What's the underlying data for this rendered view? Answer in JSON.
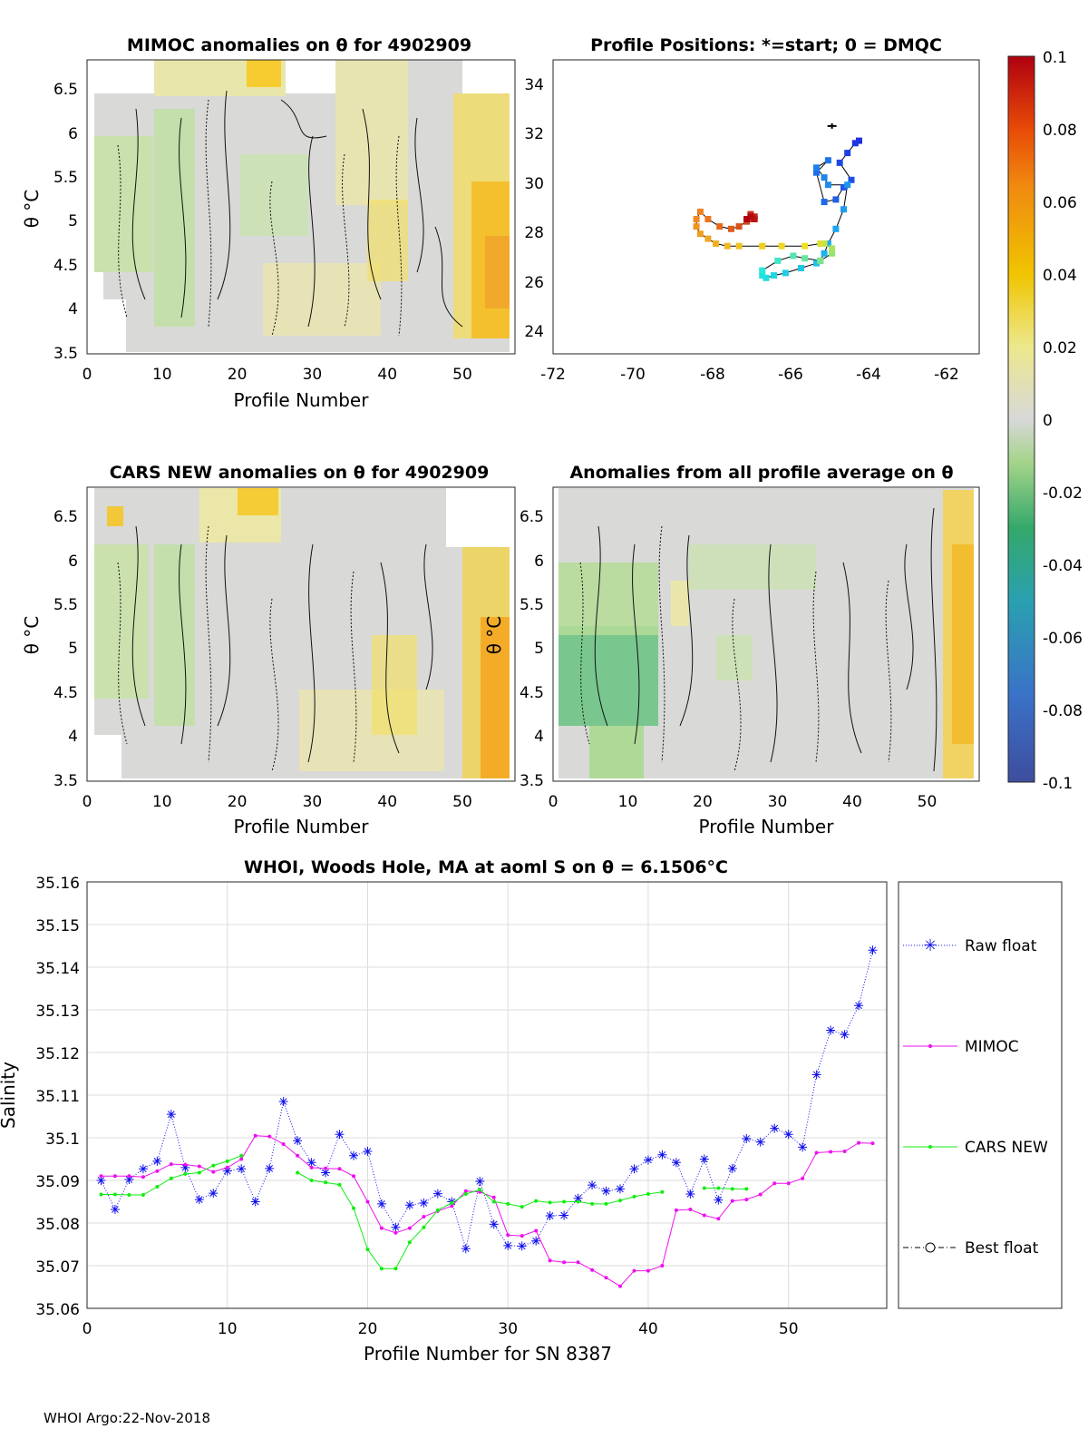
{
  "chart_data": [
    {
      "id": "mimoc",
      "type": "heatmap",
      "title": "MIMOC anomalies on θ  for 4902909",
      "xlabel": "Profile Number",
      "ylabel": "θ °C",
      "xlim": [
        0,
        57
      ],
      "ylim": [
        3.45,
        6.85
      ],
      "xticks": [
        "0",
        "10",
        "20",
        "30",
        "40",
        "50"
      ],
      "yticks": [
        "3.5",
        "4",
        "4.5",
        "5",
        "5.5",
        "6",
        "6.5"
      ],
      "grid": false
    },
    {
      "id": "positions",
      "type": "scatter",
      "title": "Profile Positions: *=start; 0 = DMQC",
      "xlabel": "",
      "ylabel": "",
      "xlim": [
        -72,
        -61
      ],
      "ylim": [
        23,
        35
      ],
      "xticks": [
        "-72",
        "-70",
        "-68",
        "-66",
        "-64",
        "-62"
      ],
      "yticks": [
        "24",
        "26",
        "28",
        "30",
        "32",
        "34"
      ],
      "lon": [
        -64.1,
        -64.2,
        -64.4,
        -64.6,
        -64.3,
        -64.5,
        -64.7,
        -65.0,
        -65.2,
        -64.9,
        -65.2,
        -65.0,
        -64.9,
        -64.4,
        -64.5,
        -64.7,
        -64.9,
        -65.0,
        -65.1,
        -65.2,
        -65.6,
        -66.0,
        -66.3,
        -66.5,
        -66.6,
        -66.6,
        -66.2,
        -65.8,
        -65.5,
        -65.1,
        -64.8,
        -64.8,
        -65.0,
        -65.1,
        -65.5,
        -66.1,
        -66.6,
        -67.2,
        -67.5,
        -67.8,
        -68.0,
        -68.2,
        -68.3,
        -68.3,
        -68.2,
        -68.0,
        -67.7,
        -67.4,
        -67.2,
        -67.0,
        -66.9,
        -66.9,
        -66.8,
        -66.8,
        -66.9,
        -67.0
      ],
      "lat": [
        31.7,
        31.6,
        31.2,
        30.8,
        30.1,
        29.8,
        29.3,
        29.2,
        30.4,
        30.9,
        30.6,
        30.2,
        29.9,
        29.9,
        28.9,
        28.1,
        27.5,
        27.1,
        26.8,
        26.7,
        26.5,
        26.3,
        26.2,
        26.1,
        26.2,
        26.4,
        26.8,
        27.0,
        26.9,
        26.8,
        27.1,
        27.3,
        27.5,
        27.5,
        27.4,
        27.4,
        27.4,
        27.4,
        27.4,
        27.5,
        27.7,
        27.9,
        28.2,
        28.5,
        28.8,
        28.5,
        28.2,
        28.1,
        28.2,
        28.4,
        28.5,
        28.7,
        28.6,
        28.5,
        28.6,
        28.5
      ],
      "start_marker": {
        "lon": -64.8,
        "lat": 32.3
      }
    },
    {
      "id": "colorbar",
      "type": "colorbar",
      "range": [
        -0.1,
        0.1
      ],
      "ticks": [
        "0.1",
        "0.08",
        "0.06",
        "0.04",
        "0.02",
        "0",
        "-0.02",
        "-0.04",
        "-0.06",
        "-0.08",
        "-0.1"
      ]
    },
    {
      "id": "cars",
      "type": "heatmap",
      "title": "CARS NEW anomalies on θ for 4902909",
      "xlabel": "Profile Number",
      "ylabel": "θ °C",
      "xlim": [
        0,
        57
      ],
      "ylim": [
        3.45,
        6.85
      ],
      "xticks": [
        "0",
        "10",
        "20",
        "30",
        "40",
        "50"
      ],
      "yticks": [
        "3.5",
        "4",
        "4.5",
        "5",
        "5.5",
        "6",
        "6.5"
      ],
      "grid": false
    },
    {
      "id": "allavg",
      "type": "heatmap",
      "title": "Anomalies from all profile average on θ",
      "xlabel": "Profile Number",
      "ylabel": "θ °C",
      "xlim": [
        0,
        57
      ],
      "ylim": [
        3.45,
        6.85
      ],
      "xticks": [
        "0",
        "10",
        "20",
        "30",
        "40",
        "50"
      ],
      "yticks": [
        "3.5",
        "4",
        "4.5",
        "5",
        "5.5",
        "6",
        "6.5"
      ],
      "grid": false
    },
    {
      "id": "salinity",
      "type": "line",
      "title": "WHOI, Woods Hole, MA at aoml S on θ = 6.1506°C",
      "xlabel": "Profile Number for SN 8387",
      "ylabel": "Salinity",
      "xlim": [
        0,
        57
      ],
      "ylim": [
        35.06,
        35.16
      ],
      "xticks": [
        "0",
        "10",
        "20",
        "30",
        "40",
        "50"
      ],
      "yticks": [
        "35.06",
        "35.07",
        "35.08",
        "35.09",
        "35.1",
        "35.11",
        "35.12",
        "35.13",
        "35.14",
        "35.15",
        "35.16"
      ],
      "grid": true,
      "legend_position": "outside-right",
      "series": [
        {
          "name": "Raw float",
          "color": "#1010ee",
          "style": "dotted-asterisk",
          "x": [
            1,
            2,
            3,
            4,
            5,
            6,
            7,
            8,
            9,
            10,
            11,
            12,
            13,
            14,
            15,
            16,
            17,
            18,
            19,
            20,
            21,
            22,
            23,
            24,
            25,
            26,
            27,
            28,
            29,
            30,
            31,
            32,
            33,
            34,
            35,
            36,
            37,
            38,
            39,
            40,
            41,
            42,
            43,
            44,
            45,
            46,
            47,
            48,
            49,
            50,
            51,
            52,
            53,
            54,
            55,
            56
          ],
          "values": [
            35.09,
            35.0832,
            35.0902,
            35.0927,
            35.0945,
            35.1055,
            35.093,
            35.0855,
            35.087,
            35.0922,
            35.0927,
            35.085,
            35.0928,
            35.1085,
            35.0993,
            35.0942,
            35.0918,
            35.1008,
            35.0958,
            35.0968,
            35.0845,
            35.079,
            35.0842,
            35.0847,
            35.0869,
            35.085,
            35.074,
            35.0898,
            35.0797,
            35.0747,
            35.0746,
            35.0758,
            35.0817,
            35.0818,
            35.0858,
            35.0889,
            35.0875,
            35.088,
            35.0927,
            35.0948,
            35.096,
            35.0942,
            35.0868,
            35.095,
            35.0854,
            35.0928,
            35.0998,
            35.099,
            35.1022,
            35.1008,
            35.0978,
            35.1148,
            35.1252,
            35.1242,
            35.131,
            35.144
          ]
        },
        {
          "name": "MIMOC",
          "color": "#ee10ee",
          "style": "solid-dot",
          "x": [
            1,
            2,
            3,
            4,
            5,
            6,
            7,
            8,
            9,
            10,
            11,
            12,
            13,
            14,
            15,
            16,
            17,
            18,
            19,
            20,
            21,
            22,
            23,
            24,
            25,
            26,
            27,
            28,
            29,
            30,
            31,
            32,
            33,
            34,
            35,
            36,
            37,
            38,
            39,
            40,
            41,
            42,
            43,
            44,
            45,
            46,
            47,
            48,
            49,
            50,
            51,
            52,
            53,
            54,
            55,
            56
          ],
          "values": [
            35.091,
            35.091,
            35.091,
            35.0908,
            35.0922,
            35.0938,
            35.0937,
            35.0933,
            35.092,
            35.093,
            35.095,
            35.1005,
            35.1003,
            35.0985,
            35.0958,
            35.093,
            35.0928,
            35.0927,
            35.091,
            35.085,
            35.0788,
            35.0777,
            35.0788,
            35.0815,
            35.0828,
            35.084,
            35.0875,
            35.0873,
            35.086,
            35.0772,
            35.077,
            35.0782,
            35.0712,
            35.0708,
            35.0708,
            35.069,
            35.0672,
            35.0652,
            35.0688,
            35.0688,
            35.07,
            35.083,
            35.0832,
            35.0818,
            35.081,
            35.0852,
            35.0855,
            35.0867,
            35.0893,
            35.0893,
            35.0905,
            35.0965,
            35.0967,
            35.0968,
            35.0988,
            35.0987
          ]
        },
        {
          "name": "CARS NEW",
          "color": "#10ee10",
          "style": "solid-dot",
          "segments": [
            {
              "x": [
                1,
                2,
                3,
                4,
                5,
                6,
                7,
                8,
                9,
                10,
                11
              ],
              "values": [
                35.0867,
                35.0867,
                35.0866,
                35.0866,
                35.0885,
                35.0905,
                35.0915,
                35.0918,
                35.0935,
                35.0945,
                35.0958
              ]
            },
            {
              "x": [
                15,
                16,
                17,
                18,
                19,
                20,
                21,
                22,
                23,
                24,
                25,
                26,
                27,
                28,
                29,
                30,
                31,
                32,
                33,
                34,
                35,
                36,
                37,
                38,
                39,
                40,
                41
              ],
              "values": [
                35.0918,
                35.09,
                35.0895,
                35.089,
                35.0835,
                35.0738,
                35.0693,
                35.0693,
                35.0755,
                35.079,
                35.083,
                35.0847,
                35.0868,
                35.0878,
                35.085,
                35.0845,
                35.0838,
                35.0852,
                35.0848,
                35.085,
                35.085,
                35.0845,
                35.0845,
                35.0853,
                35.0862,
                35.0868,
                35.0873
              ]
            },
            {
              "x": [
                44,
                45,
                46,
                47
              ],
              "values": [
                35.0882,
                35.0882,
                35.088,
                35.088
              ]
            }
          ]
        },
        {
          "name": "Best float",
          "color": "#000000",
          "style": "dashdot-circle",
          "x": [],
          "values": []
        }
      ]
    }
  ],
  "footer": "WHOI Argo:22-Nov-2018"
}
